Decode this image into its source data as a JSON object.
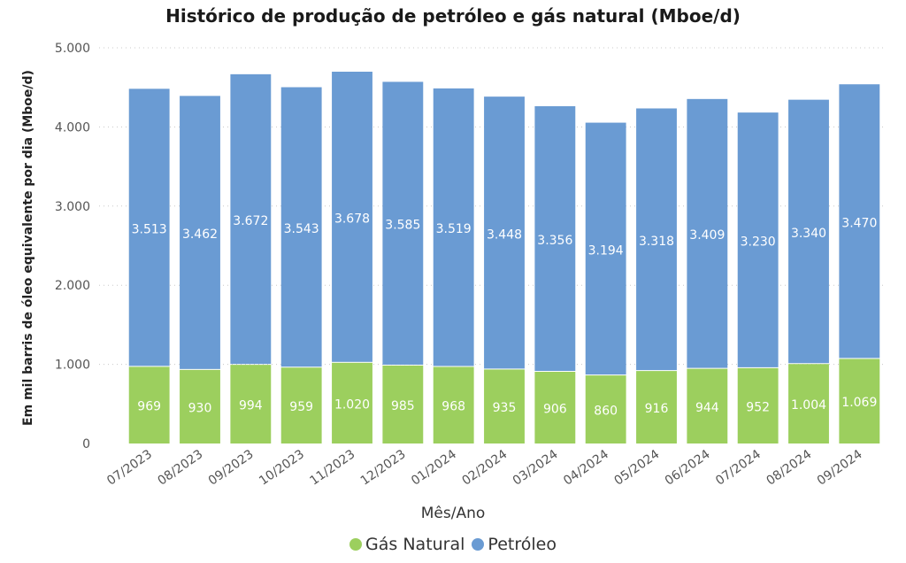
{
  "chart_data": {
    "type": "bar",
    "stacked": true,
    "title": "Histórico de produção de petróleo e gás natural (Mboe/d)",
    "xlabel": "Mês/Ano",
    "ylabel": "Em mil barris de óleo equivalente por dia (Mboe/d)",
    "ylim": [
      0,
      5000
    ],
    "yticks": [
      0,
      1000,
      2000,
      3000,
      4000,
      5000
    ],
    "ytick_labels": [
      "0",
      "1.000",
      "2.000",
      "3.000",
      "4.000",
      "5.000"
    ],
    "grid": true,
    "legend_position": "bottom",
    "categories": [
      "07/2023",
      "08/2023",
      "09/2023",
      "10/2023",
      "11/2023",
      "12/2023",
      "01/2024",
      "02/2024",
      "03/2024",
      "04/2024",
      "05/2024",
      "06/2024",
      "07/2024",
      "08/2024",
      "09/2024"
    ],
    "series": [
      {
        "name": "Gás Natural",
        "color": "#9ccf5e",
        "values": [
          969,
          930,
          994,
          959,
          1020,
          985,
          968,
          935,
          906,
          860,
          916,
          944,
          952,
          1004,
          1069
        ],
        "labels": [
          "969",
          "930",
          "994",
          "959",
          "1.020",
          "985",
          "968",
          "935",
          "906",
          "860",
          "916",
          "944",
          "952",
          "1.004",
          "1.069"
        ]
      },
      {
        "name": "Petróleo",
        "color": "#6a9bd3",
        "values": [
          3513,
          3462,
          3672,
          3543,
          3678,
          3585,
          3519,
          3448,
          3356,
          3194,
          3318,
          3409,
          3230,
          3340,
          3470
        ],
        "labels": [
          "3.513",
          "3.462",
          "3.672",
          "3.543",
          "3.678",
          "3.585",
          "3.519",
          "3.448",
          "3.356",
          "3.194",
          "3.318",
          "3.409",
          "3.230",
          "3.340",
          "3.470"
        ]
      }
    ]
  }
}
